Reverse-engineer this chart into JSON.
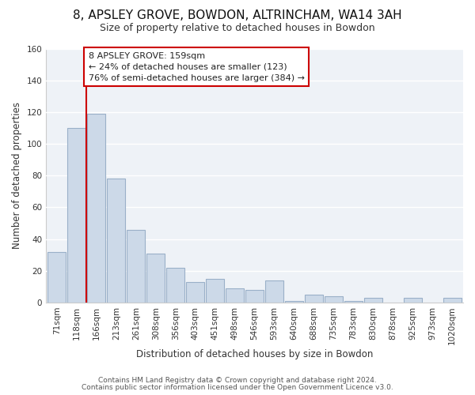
{
  "title": "8, APSLEY GROVE, BOWDON, ALTRINCHAM, WA14 3AH",
  "subtitle": "Size of property relative to detached houses in Bowdon",
  "xlabel": "Distribution of detached houses by size in Bowdon",
  "ylabel": "Number of detached properties",
  "bar_color": "#ccd9e8",
  "bar_edge_color": "#9ab0c8",
  "reference_line_x": 1.5,
  "reference_line_color": "#cc0000",
  "annotation_text": "8 APSLEY GROVE: 159sqm\n← 24% of detached houses are smaller (123)\n76% of semi-detached houses are larger (384) →",
  "annotation_box_color": "#ffffff",
  "annotation_box_edge_color": "#cc0000",
  "categories": [
    "71sqm",
    "118sqm",
    "166sqm",
    "213sqm",
    "261sqm",
    "308sqm",
    "356sqm",
    "403sqm",
    "451sqm",
    "498sqm",
    "546sqm",
    "593sqm",
    "640sqm",
    "688sqm",
    "735sqm",
    "783sqm",
    "830sqm",
    "878sqm",
    "925sqm",
    "973sqm",
    "1020sqm"
  ],
  "values": [
    32,
    110,
    119,
    78,
    46,
    31,
    22,
    13,
    15,
    9,
    8,
    14,
    1,
    5,
    4,
    1,
    3,
    0,
    3,
    0,
    3
  ],
  "ylim": [
    0,
    160
  ],
  "yticks": [
    0,
    20,
    40,
    60,
    80,
    100,
    120,
    140,
    160
  ],
  "footer1": "Contains HM Land Registry data © Crown copyright and database right 2024.",
  "footer2": "Contains public sector information licensed under the Open Government Licence v3.0.",
  "background_color": "#ffffff",
  "plot_bg_color": "#eef2f7",
  "grid_color": "#ffffff",
  "title_fontsize": 11,
  "subtitle_fontsize": 9,
  "tick_fontsize": 7.5,
  "footer_fontsize": 6.5,
  "annotation_fontsize": 8
}
